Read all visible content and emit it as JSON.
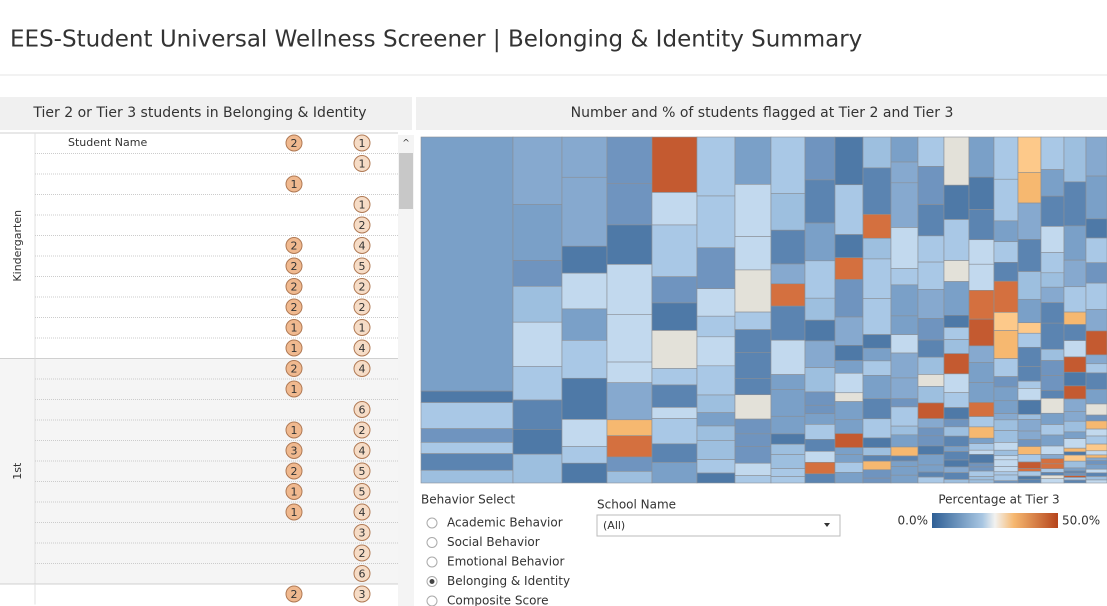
{
  "header": {
    "title": "EES-Student Universal Wellness Screener | Belonging & Identity Summary"
  },
  "students_panel": {
    "title": "Tier 2 or Tier 3 students in Belonging & Identity",
    "column_label": "Student Name",
    "groups": [
      {
        "label": "Kindergarten",
        "rows": [
          [
            2,
            1
          ],
          [
            null,
            1
          ],
          [
            1,
            null
          ],
          [
            null,
            1
          ],
          [
            null,
            2
          ],
          [
            2,
            4
          ],
          [
            2,
            5
          ],
          [
            2,
            2
          ],
          [
            2,
            2
          ],
          [
            1,
            1
          ],
          [
            1,
            4
          ]
        ]
      },
      {
        "label": "1st",
        "rows": [
          [
            2,
            4
          ],
          [
            1,
            null
          ],
          [
            null,
            6
          ],
          [
            1,
            2
          ],
          [
            3,
            4
          ],
          [
            2,
            5
          ],
          [
            1,
            5
          ],
          [
            1,
            4
          ],
          [
            null,
            3
          ],
          [
            null,
            2
          ],
          [
            null,
            6
          ]
        ]
      },
      {
        "rows": [
          [
            2,
            3
          ]
        ]
      }
    ]
  },
  "treemap": {
    "title": "Number and % of students flagged at Tier 2 and Tier 3"
  },
  "behavior_select": {
    "label": "Behavior Select",
    "options": [
      "Academic Behavior",
      "Social Behavior",
      "Emotional Behavior",
      "Belonging & Identity",
      "Composite Score"
    ],
    "selected": 3
  },
  "school_filter": {
    "label": "School Name",
    "value": "(All)"
  },
  "legend": {
    "title": "Percentage at Tier 3",
    "min_label": "0.0%",
    "max_label": "50.0%"
  }
}
